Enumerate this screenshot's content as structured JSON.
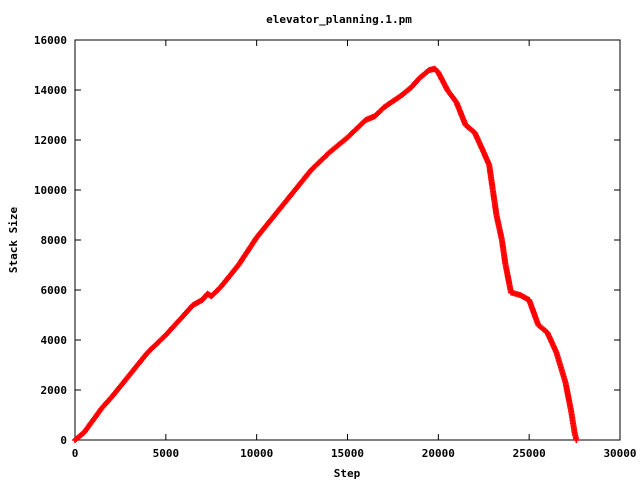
{
  "chart_data": {
    "type": "scatter",
    "title": "elevator_planning.1.pm",
    "xlabel": "Step",
    "ylabel": "Stack Size",
    "xlim": [
      0,
      30000
    ],
    "ylim": [
      0,
      16000
    ],
    "xticks": [
      0,
      5000,
      10000,
      15000,
      20000,
      25000,
      30000
    ],
    "yticks": [
      0,
      2000,
      4000,
      6000,
      8000,
      10000,
      12000,
      14000,
      16000
    ],
    "grid": false,
    "legend": "none",
    "marker": "+",
    "series": [
      {
        "color": "#ff0000",
        "points": [
          [
            0,
            0
          ],
          [
            500,
            300
          ],
          [
            1000,
            800
          ],
          [
            1500,
            1300
          ],
          [
            2000,
            1700
          ],
          [
            3000,
            2600
          ],
          [
            4000,
            3500
          ],
          [
            5000,
            4200
          ],
          [
            6000,
            5000
          ],
          [
            6500,
            5400
          ],
          [
            7000,
            5600
          ],
          [
            7300,
            5850
          ],
          [
            7500,
            5750
          ],
          [
            8000,
            6100
          ],
          [
            9000,
            7000
          ],
          [
            10000,
            8100
          ],
          [
            11000,
            9000
          ],
          [
            12000,
            9900
          ],
          [
            13000,
            10800
          ],
          [
            14000,
            11500
          ],
          [
            15000,
            12100
          ],
          [
            16000,
            12800
          ],
          [
            16500,
            12950
          ],
          [
            17000,
            13300
          ],
          [
            18000,
            13800
          ],
          [
            18500,
            14100
          ],
          [
            19000,
            14500
          ],
          [
            19500,
            14800
          ],
          [
            19800,
            14850
          ],
          [
            20000,
            14700
          ],
          [
            20500,
            14000
          ],
          [
            21000,
            13500
          ],
          [
            21500,
            12600
          ],
          [
            22000,
            12300
          ],
          [
            22500,
            11500
          ],
          [
            22800,
            11000
          ],
          [
            23000,
            10000
          ],
          [
            23200,
            9000
          ],
          [
            23500,
            8000
          ],
          [
            23700,
            7000
          ],
          [
            24000,
            5900
          ],
          [
            24500,
            5800
          ],
          [
            25000,
            5600
          ],
          [
            25500,
            4600
          ],
          [
            26000,
            4300
          ],
          [
            26500,
            3500
          ],
          [
            27000,
            2300
          ],
          [
            27300,
            1200
          ],
          [
            27500,
            300
          ],
          [
            27600,
            0
          ]
        ]
      }
    ]
  }
}
